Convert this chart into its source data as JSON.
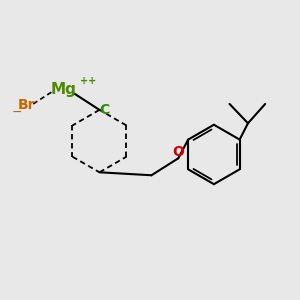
{
  "background_color": "#e8e8e8",
  "bond_color": "#000000",
  "text_colors": {
    "Mg": "#4a8c00",
    "Br": "#cc6600",
    "O": "#cc0000",
    "C": "#2d8c00"
  },
  "figsize": [
    3.0,
    3.0
  ],
  "dpi": 100
}
